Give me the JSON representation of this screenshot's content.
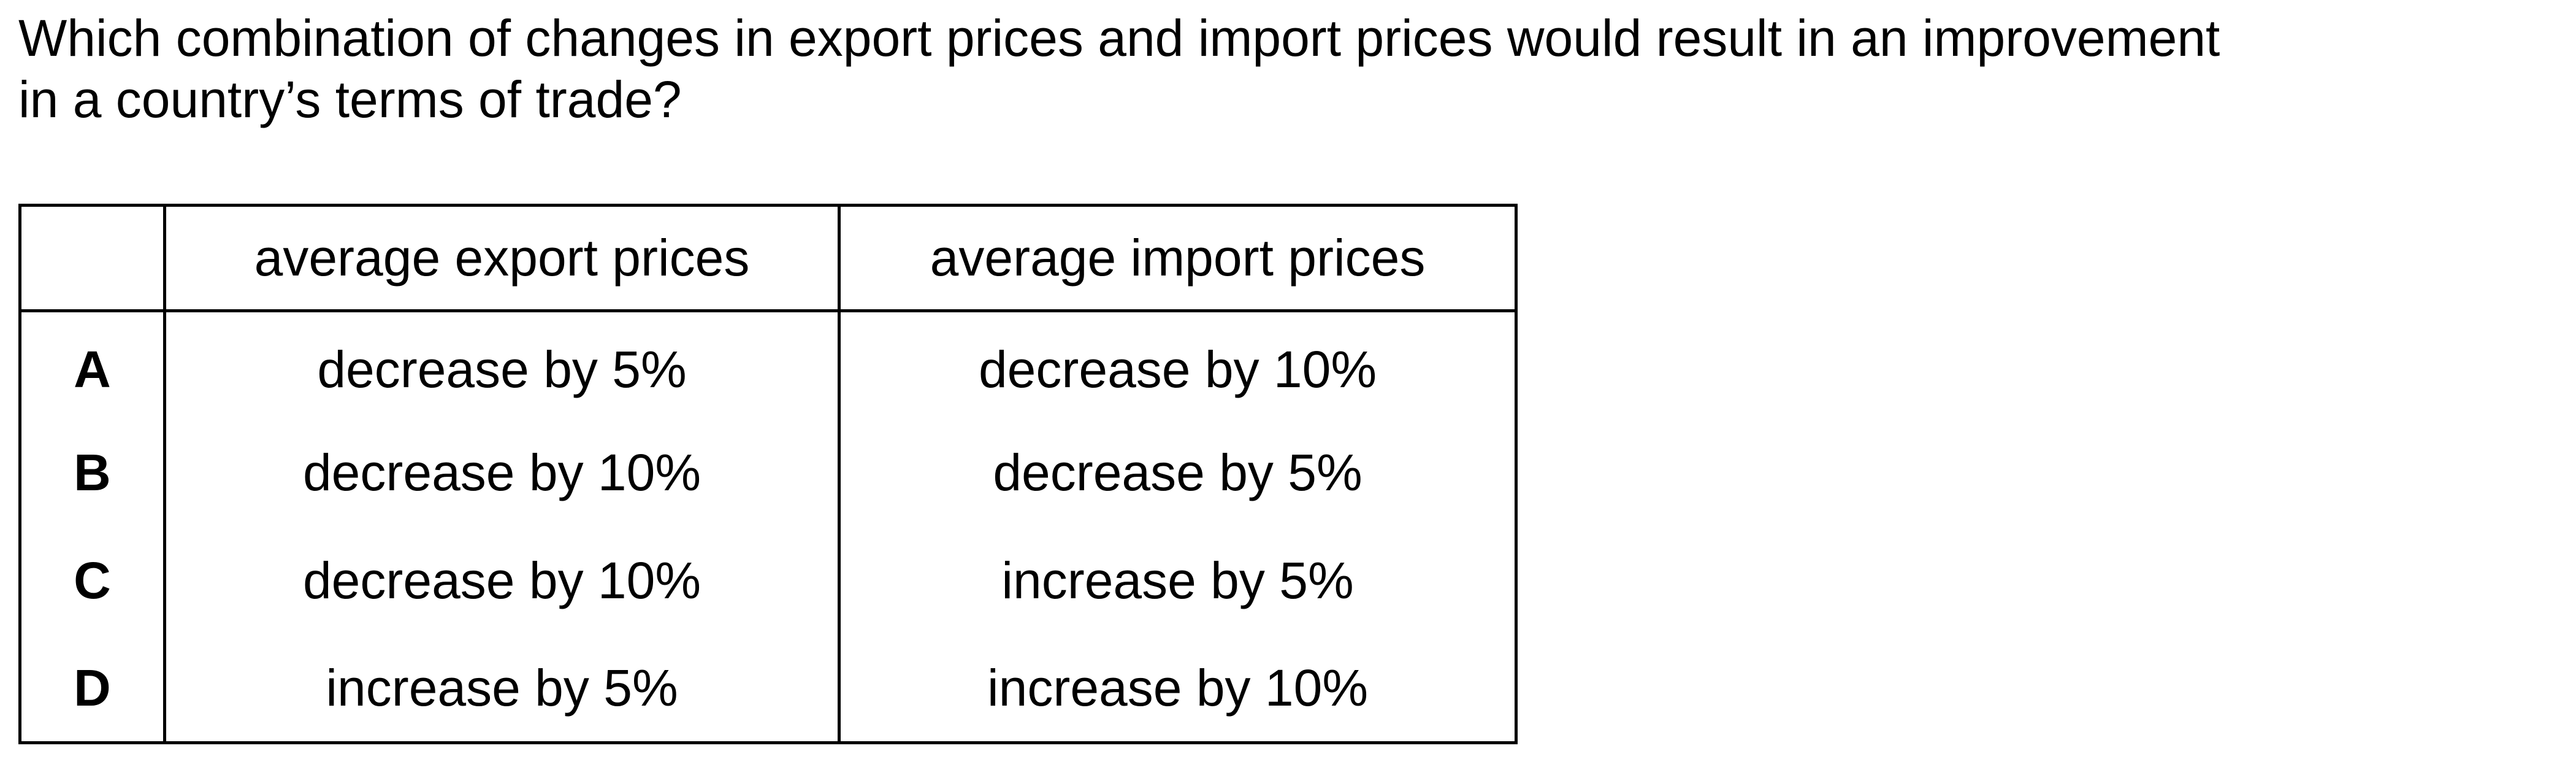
{
  "question": {
    "line1": "Which combination of changes in export prices and import prices would result in an improvement",
    "line2": "in a country’s terms of trade?"
  },
  "table": {
    "headers": [
      "",
      "average export prices",
      "average import prices"
    ],
    "rows": [
      {
        "letter": "A",
        "export": "decrease by 5%",
        "import": "decrease by 10%"
      },
      {
        "letter": "B",
        "export": "decrease by 10%",
        "import": "decrease by 5%"
      },
      {
        "letter": "C",
        "export": "decrease by 10%",
        "import": "increase by 5%"
      },
      {
        "letter": "D",
        "export": "increase by 5%",
        "import": "increase by 10%"
      }
    ]
  }
}
